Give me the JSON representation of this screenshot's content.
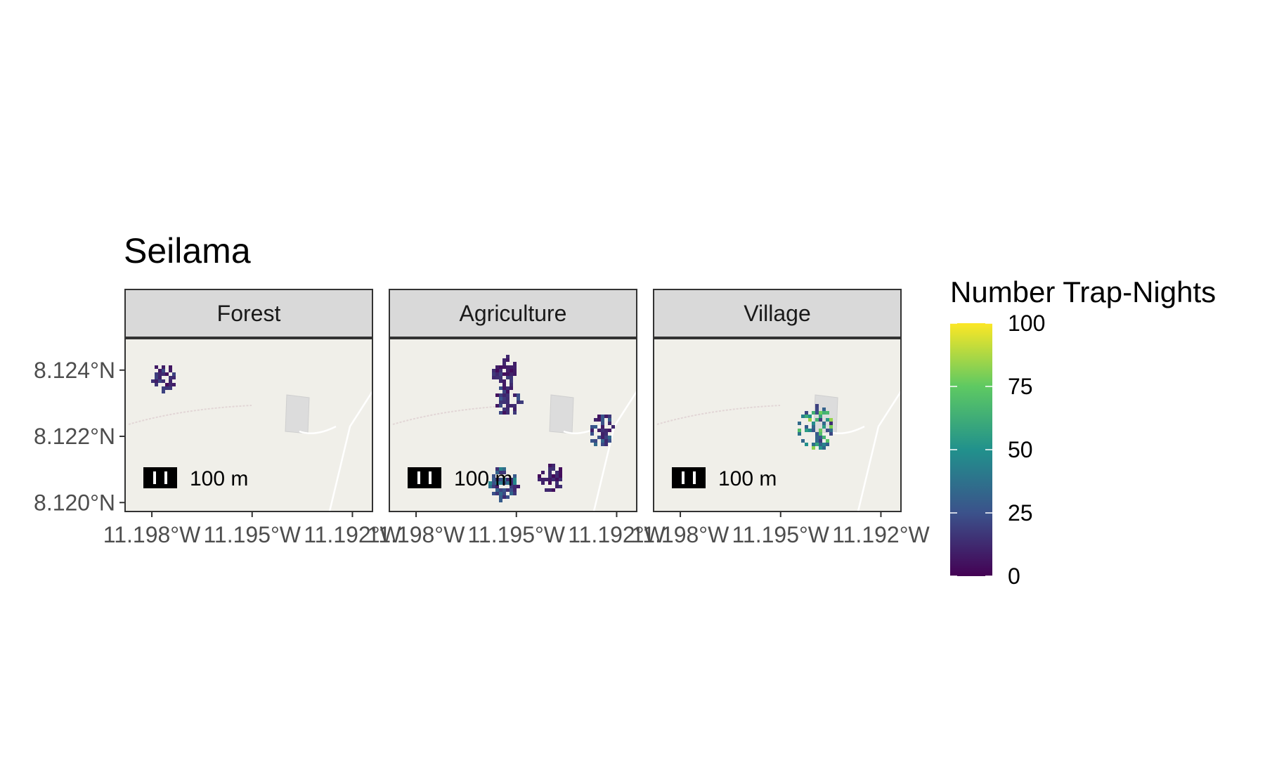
{
  "title": "Seilama",
  "legend": {
    "title": "Number Trap-Nights",
    "ticks": [
      "100",
      "75",
      "50",
      "25",
      "0"
    ],
    "tick_values": [
      100,
      75,
      50,
      25,
      0
    ],
    "colormap": "viridis"
  },
  "map_data": {
    "y_ticks": [
      "8.124°N",
      "8.122°N",
      "8.120°N"
    ],
    "x_ticks": [
      "11.198°W",
      "11.195°W",
      "11.192°W"
    ],
    "scale_bar_label": "100 m",
    "panels": [
      {
        "label": "Forest",
        "clusters": [
          {
            "lon": -11.1977,
            "lat": 8.1238,
            "level": 12
          }
        ]
      },
      {
        "label": "Agriculture",
        "clusters": [
          {
            "lon": -11.1954,
            "lat": 8.124,
            "level": 10
          },
          {
            "lon": -11.1953,
            "lat": 8.1231,
            "level": 14
          },
          {
            "lon": -11.1925,
            "lat": 8.1222,
            "level": 18
          },
          {
            "lon": -11.1954,
            "lat": 8.1206,
            "level": 25
          },
          {
            "lon": -11.194,
            "lat": 8.1208,
            "level": 8
          }
        ]
      },
      {
        "label": "Village",
        "clusters": [
          {
            "lon": -11.194,
            "lat": 8.1223,
            "level": 45
          }
        ]
      }
    ]
  },
  "colors": {
    "panel_bg": "#f0efe9",
    "strip_bg": "#d9d9d9",
    "panel_border": "#333333",
    "tick_text": "#4d4d4d",
    "viridis": [
      "#440154",
      "#3b528b",
      "#21918c",
      "#5ec962",
      "#fde725"
    ]
  }
}
